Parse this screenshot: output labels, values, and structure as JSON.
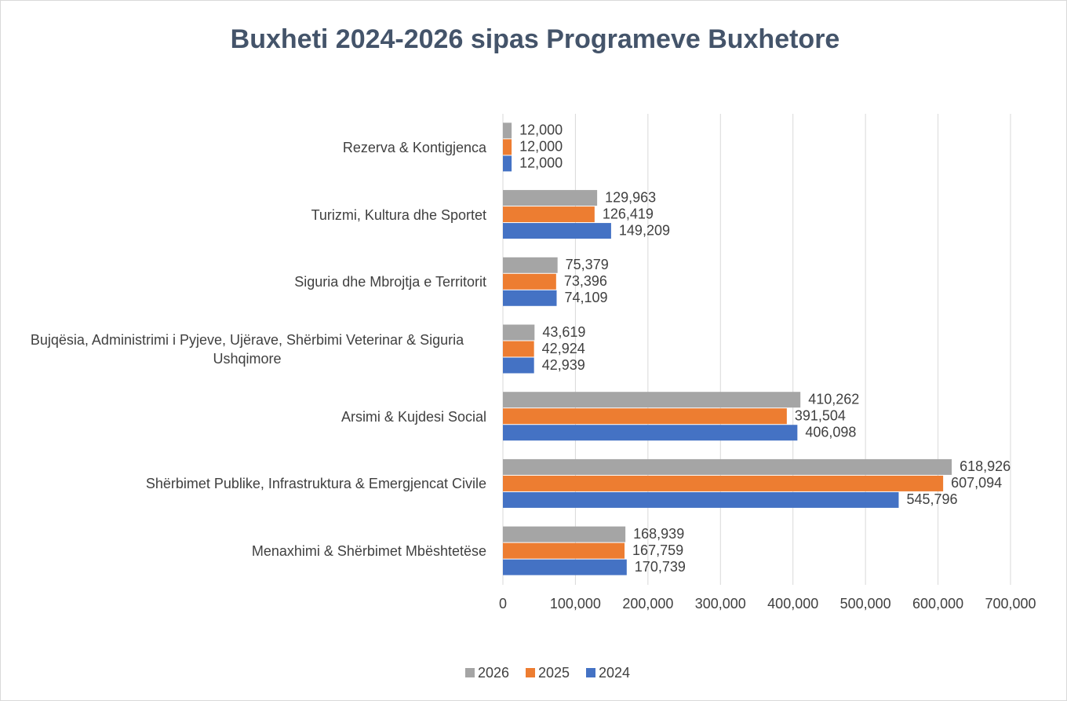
{
  "chart_data": {
    "type": "bar",
    "orientation": "horizontal",
    "title": "Buxheti 2024-2026 sipas Programeve Buxhetore",
    "categories": [
      "Rezerva & Kontigjenca",
      "Turizmi, Kultura dhe Sportet",
      "Siguria dhe Mbrojtja e Territorit",
      "Bujqësia, Administrimi i Pyjeve, Ujërave, Shërbimi Veterinar & Siguria Ushqimore",
      "Arsimi & Kujdesi Social",
      "Shërbimet Publike, Infrastruktura & Emergjencat Civile",
      "Menaxhimi & Shërbimet Mbështetëse"
    ],
    "series": [
      {
        "name": "2026",
        "color": "#a5a5a5",
        "values": [
          12000,
          129963,
          75379,
          43619,
          410262,
          618926,
          168939
        ],
        "value_labels": [
          "12,000",
          "129,963",
          "75,379",
          "43,619",
          "410,262",
          "618,926",
          "168,939"
        ]
      },
      {
        "name": "2025",
        "color": "#ed7d31",
        "values": [
          12000,
          126419,
          73396,
          42924,
          391504,
          607094,
          167759
        ],
        "value_labels": [
          "12,000",
          "126,419",
          "73,396",
          "42,924",
          "391,504",
          "607,094",
          "167,759"
        ]
      },
      {
        "name": "2024",
        "color": "#4472c4",
        "values": [
          12000,
          149209,
          74109,
          42939,
          406098,
          545796,
          170739
        ],
        "value_labels": [
          "12,000",
          "149,209",
          "74,109",
          "42,939",
          "406,098",
          "545,796",
          "170,739"
        ]
      }
    ],
    "xlim": [
      0,
      700000
    ],
    "xticks": [
      0,
      {
        "value": 100000,
        "label": "100,000"
      },
      {
        "value": 200000,
        "label": "200,000"
      },
      {
        "value": 300000,
        "label": "300,000"
      },
      {
        "value": 400000,
        "label": "400,000"
      },
      {
        "value": 500000,
        "label": "500,000"
      },
      {
        "value": 600000,
        "label": "600,000"
      },
      {
        "value": 700000,
        "label": "700,000"
      }
    ],
    "grid": true,
    "legend": "bottom"
  }
}
